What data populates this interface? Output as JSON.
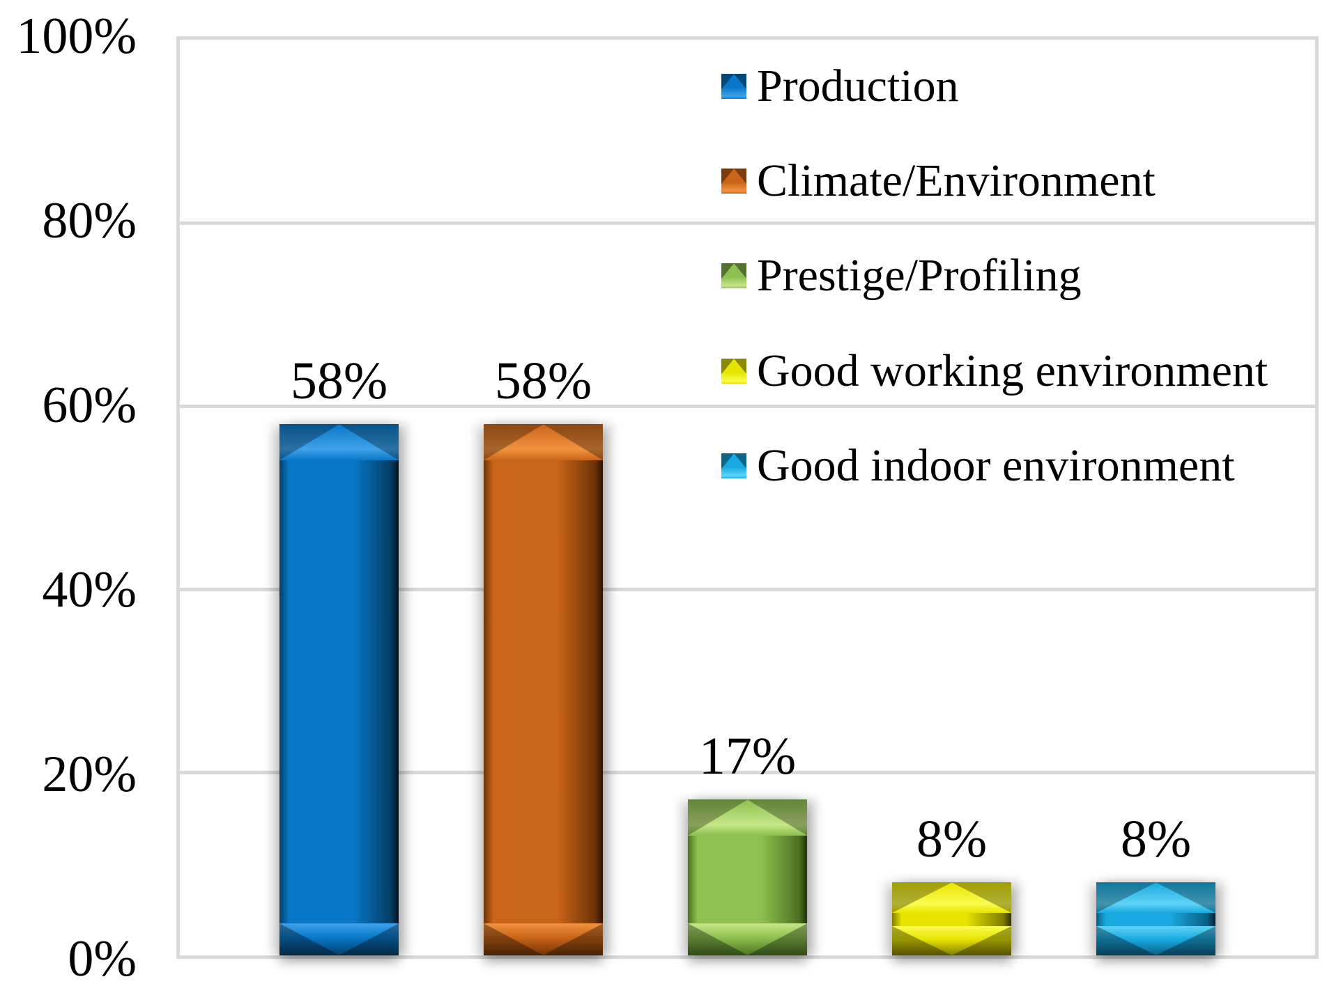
{
  "chart_data": {
    "type": "bar",
    "title": "",
    "xlabel": "",
    "ylabel": "",
    "categories": [
      "Production",
      "Climate/Environment",
      "Prestige/Profiling",
      "Good working environment",
      "Good indoor environment"
    ],
    "values": [
      58,
      58,
      17,
      8,
      8
    ],
    "series": [
      {
        "name": "Production",
        "value": 58,
        "data_label": "58%",
        "colors": {
          "highlight": "#3FA2EA",
          "main": "#0877C8",
          "dark": "#053E66",
          "edge": "#02131F"
        }
      },
      {
        "name": "Climate/Environment",
        "value": 58,
        "data_label": "58%",
        "colors": {
          "highlight": "#F2923E",
          "main": "#C96418",
          "dark": "#6E3408",
          "edge": "#291201"
        }
      },
      {
        "name": "Prestige/Profiling",
        "value": 17,
        "data_label": "17%",
        "colors": {
          "highlight": "#C6E687",
          "main": "#8CC050",
          "dark": "#4C7122",
          "edge": "#1F3407"
        }
      },
      {
        "name": "Good working environment",
        "value": 8,
        "data_label": "8%",
        "colors": {
          "highlight": "#FBFB50",
          "main": "#E7E400",
          "dark": "#807D00",
          "edge": "#333200"
        }
      },
      {
        "name": "Good indoor environment",
        "value": 8,
        "data_label": "8%",
        "colors": {
          "highlight": "#5FD4F6",
          "main": "#18A9E0",
          "dark": "#0A5E84",
          "edge": "#032330"
        }
      }
    ],
    "y_axis": {
      "min": 0,
      "max": 100,
      "step": 20,
      "tick_labels": [
        "100%",
        "80%",
        "60%",
        "40%",
        "20%",
        "0%"
      ]
    },
    "grid": {
      "show": true,
      "color": "#D9D9D9"
    },
    "legend": {
      "position": "top-right-inside",
      "entries": [
        "Production",
        "Climate/Environment",
        "Prestige/Profiling",
        "Good working environment",
        "Good indoor environment"
      ]
    },
    "plot_border_color": "#D9D9D9",
    "background_color": "#FFFFFF",
    "text_color": "#000000"
  }
}
